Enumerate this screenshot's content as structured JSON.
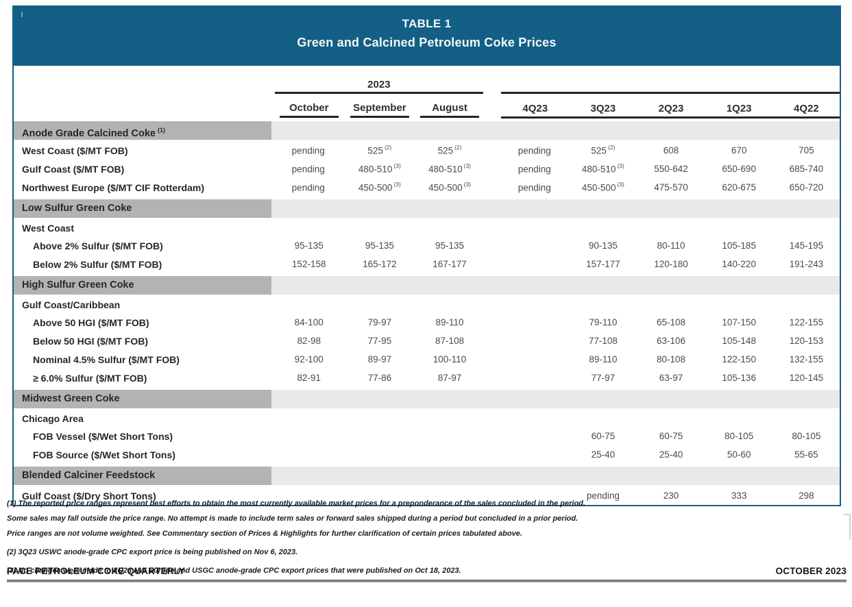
{
  "title": {
    "line1": "TABLE 1",
    "line2": "Green and Calcined Petroleum Coke Prices"
  },
  "colors": {
    "band_teal": "#135f86",
    "section_dark_gray": "#b3b3b3",
    "section_light_gray": "#e9e9e9"
  },
  "header": {
    "year_group": "2023",
    "months": [
      "October",
      "September",
      "August"
    ],
    "quarters": [
      "4Q23",
      "3Q23",
      "2Q23",
      "1Q23",
      "4Q22"
    ]
  },
  "table": {
    "rows": [
      {
        "type": "section",
        "label": "Anode Grade Calcined Coke",
        "sup": "(1)"
      },
      {
        "type": "data",
        "label": "West Coast ($/MT FOB)",
        "values": [
          "pending",
          "525",
          "525",
          "pending",
          "525",
          "608",
          "670",
          "705"
        ],
        "sups": [
          "",
          "(2)",
          "(2)",
          "",
          "(2)",
          "",
          "",
          ""
        ]
      },
      {
        "type": "data",
        "label": "Gulf Coast ($/MT FOB)",
        "values": [
          "pending",
          "480-510",
          "480-510",
          "pending",
          "480-510",
          "550-642",
          "650-690",
          "685-740"
        ],
        "sups": [
          "",
          "(3)",
          "(3)",
          "",
          "(3)",
          "",
          "",
          ""
        ]
      },
      {
        "type": "data",
        "label": "Northwest Europe ($/MT CIF Rotterdam)",
        "values": [
          "pending",
          "450-500",
          "450-500",
          "pending",
          "450-500",
          "475-570",
          "620-675",
          "650-720"
        ],
        "sups": [
          "",
          "(3)",
          "(3)",
          "",
          "(3)",
          "",
          "",
          ""
        ]
      },
      {
        "type": "section",
        "label": "Low Sulfur Green Coke",
        "sup": ""
      },
      {
        "type": "subheader",
        "label": "West Coast"
      },
      {
        "type": "data",
        "label": "Above 2% Sulfur ($/MT FOB)",
        "values": [
          "95-135",
          "95-135",
          "95-135",
          "",
          "90-135",
          "80-110",
          "105-185",
          "145-195"
        ]
      },
      {
        "type": "data",
        "label": "Below 2% Sulfur ($/MT FOB)",
        "values": [
          "152-158",
          "165-172",
          "167-177",
          "",
          "157-177",
          "120-180",
          "140-220",
          "191-243"
        ]
      },
      {
        "type": "section",
        "label": "High Sulfur Green Coke",
        "sup": ""
      },
      {
        "type": "subheader",
        "label": "Gulf Coast/Caribbean"
      },
      {
        "type": "data",
        "label": "Above 50 HGI ($/MT FOB)",
        "values": [
          "84-100",
          "79-97",
          "89-110",
          "",
          "79-110",
          "65-108",
          "107-150",
          "122-155"
        ]
      },
      {
        "type": "data",
        "label": "Below 50 HGI ($/MT FOB)",
        "values": [
          "82-98",
          "77-95",
          "87-108",
          "",
          "77-108",
          "63-106",
          "105-148",
          "120-153"
        ]
      },
      {
        "type": "data",
        "label": "Nominal 4.5% Sulfur ($/MT FOB)",
        "values": [
          "92-100",
          "89-97",
          "100-110",
          "",
          "89-110",
          "80-108",
          "122-150",
          "132-155"
        ]
      },
      {
        "type": "data",
        "label": "≥ 6.0% Sulfur ($/MT FOB)",
        "values": [
          "82-91",
          "77-86",
          "87-97",
          "",
          "77-97",
          "63-97",
          "105-136",
          "120-145"
        ]
      },
      {
        "type": "section",
        "label": "Midwest Green Coke",
        "sup": ""
      },
      {
        "type": "subheader",
        "label": "Chicago Area"
      },
      {
        "type": "data",
        "label": "FOB Vessel ($/Wet Short Tons)",
        "values": [
          "",
          "",
          "",
          "",
          "60-75",
          "60-75",
          "80-105",
          "80-105"
        ]
      },
      {
        "type": "data",
        "label": "FOB Source ($/Wet Short Tons)",
        "values": [
          "",
          "",
          "",
          "",
          "25-40",
          "25-40",
          "50-60",
          "55-65"
        ]
      },
      {
        "type": "section",
        "label": "Blended Calciner Feedstock",
        "sup": ""
      },
      {
        "type": "data",
        "label": "Gulf Coast ($/Dry Short Tons)",
        "values": [
          "",
          "",
          "",
          "",
          "pending",
          "230",
          "333",
          "298"
        ]
      }
    ]
  },
  "footnotes": [
    "(1) The reported price ranges represent best efforts to obtain the most currently available market prices for a preponderance of the sales concluded in the period.",
    "Some sales may fall outside the price range. No attempt is made to include term sales or forward sales shipped during a period but concluded in a prior period.",
    "Price ranges are not volume weighted. See Commentary section of Prices & Highlights for further clarification of certain prices tabulated above.",
    "(2) 3Q23 USWC anode-grade CPC export price is being published on Nov 6, 2023.",
    "(3) No changes were made to 3Q23 NW Europe and USGC anode-grade CPC export prices that were published on Oct 18, 2023."
  ],
  "footer": {
    "left": "PACE PETROLEUM COKE QUARTERLY",
    "right": "OCTOBER 2023"
  }
}
